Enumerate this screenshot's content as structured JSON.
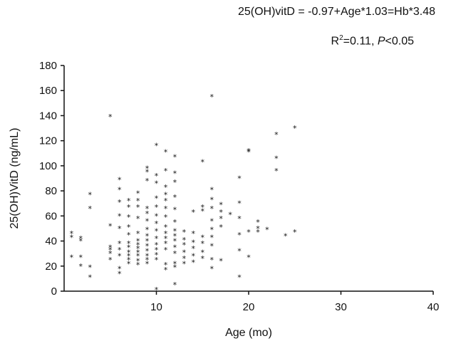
{
  "annotations": {
    "equation": "25(OH)vitD = -0.97+Age*1.03=Hb*3.48",
    "r2_prefix": "R",
    "r2_sup": "2",
    "r2_mid": "=0.11, ",
    "p_letter": "P",
    "p_rest": "<0.05"
  },
  "chart_data": {
    "type": "scatter",
    "xlabel": "Age (mo)",
    "ylabel": "25(OH)VitD (ng/mL)",
    "xlim": [
      0,
      40
    ],
    "ylim": [
      0,
      180
    ],
    "x_ticks": [
      10,
      20,
      30,
      40
    ],
    "y_ticks": [
      0,
      20,
      40,
      60,
      80,
      100,
      120,
      140,
      160,
      180
    ],
    "grid": false,
    "marker": "*",
    "points": [
      [
        0.8,
        46
      ],
      [
        0.8,
        43
      ],
      [
        0.8,
        27
      ],
      [
        1.8,
        42
      ],
      [
        1.8,
        40
      ],
      [
        1.8,
        27
      ],
      [
        1.8,
        20
      ],
      [
        2.8,
        77
      ],
      [
        2.8,
        66
      ],
      [
        2.8,
        19
      ],
      [
        2.8,
        11
      ],
      [
        5,
        139
      ],
      [
        5,
        52
      ],
      [
        5,
        35
      ],
      [
        5,
        33
      ],
      [
        5,
        30
      ],
      [
        5,
        25
      ],
      [
        6,
        89
      ],
      [
        6,
        81
      ],
      [
        6,
        71
      ],
      [
        6,
        60
      ],
      [
        6,
        50
      ],
      [
        6,
        38
      ],
      [
        6,
        33
      ],
      [
        6,
        28
      ],
      [
        6,
        18
      ],
      [
        6,
        14
      ],
      [
        7,
        72
      ],
      [
        7,
        67
      ],
      [
        7,
        59
      ],
      [
        7,
        51
      ],
      [
        7,
        45
      ],
      [
        7,
        38
      ],
      [
        7,
        35
      ],
      [
        7,
        31
      ],
      [
        7,
        28
      ],
      [
        7,
        25
      ],
      [
        7,
        22
      ],
      [
        8,
        78
      ],
      [
        8,
        72
      ],
      [
        8,
        67
      ],
      [
        8,
        58
      ],
      [
        8,
        46
      ],
      [
        8,
        40
      ],
      [
        8,
        37
      ],
      [
        8,
        34
      ],
      [
        8,
        31
      ],
      [
        8,
        28
      ],
      [
        8,
        24
      ],
      [
        8,
        21
      ],
      [
        9,
        98
      ],
      [
        9,
        95
      ],
      [
        9,
        88
      ],
      [
        9,
        66
      ],
      [
        9,
        62
      ],
      [
        9,
        56
      ],
      [
        9,
        49
      ],
      [
        9,
        44
      ],
      [
        9,
        40
      ],
      [
        9,
        36
      ],
      [
        9,
        32
      ],
      [
        9,
        28
      ],
      [
        9,
        25
      ],
      [
        9,
        22
      ],
      [
        10,
        116
      ],
      [
        10,
        92
      ],
      [
        10,
        86
      ],
      [
        10,
        74
      ],
      [
        10,
        67
      ],
      [
        10,
        60
      ],
      [
        10,
        54
      ],
      [
        10,
        48
      ],
      [
        10,
        42
      ],
      [
        10,
        37
      ],
      [
        10,
        33
      ],
      [
        10,
        29
      ],
      [
        10,
        25
      ],
      [
        10,
        1
      ],
      [
        11,
        111
      ],
      [
        11,
        96
      ],
      [
        11,
        83
      ],
      [
        11,
        77
      ],
      [
        11,
        72
      ],
      [
        11,
        66
      ],
      [
        11,
        59
      ],
      [
        11,
        51
      ],
      [
        11,
        46
      ],
      [
        11,
        42
      ],
      [
        11,
        38
      ],
      [
        11,
        33
      ],
      [
        11,
        21
      ],
      [
        11,
        17
      ],
      [
        12,
        107
      ],
      [
        12,
        94
      ],
      [
        12,
        87
      ],
      [
        12,
        75
      ],
      [
        12,
        65
      ],
      [
        12,
        55
      ],
      [
        12,
        48
      ],
      [
        12,
        44
      ],
      [
        12,
        40
      ],
      [
        12,
        35
      ],
      [
        12,
        30
      ],
      [
        12,
        22
      ],
      [
        12,
        19
      ],
      [
        12,
        5
      ],
      [
        13,
        47
      ],
      [
        13,
        41
      ],
      [
        13,
        37
      ],
      [
        13,
        31
      ],
      [
        13,
        26
      ],
      [
        13,
        22
      ],
      [
        14,
        63
      ],
      [
        14,
        46
      ],
      [
        14,
        39
      ],
      [
        14,
        34
      ],
      [
        14,
        28
      ],
      [
        14,
        23
      ],
      [
        15,
        103
      ],
      [
        15,
        67
      ],
      [
        15,
        64
      ],
      [
        15,
        43
      ],
      [
        15,
        38
      ],
      [
        15,
        31
      ],
      [
        15,
        26
      ],
      [
        16,
        155
      ],
      [
        16,
        81
      ],
      [
        16,
        73
      ],
      [
        16,
        66
      ],
      [
        16,
        56
      ],
      [
        16,
        49
      ],
      [
        16,
        43
      ],
      [
        16,
        36
      ],
      [
        16,
        25
      ],
      [
        16,
        18
      ],
      [
        17,
        69
      ],
      [
        17,
        63
      ],
      [
        17,
        58
      ],
      [
        17,
        51
      ],
      [
        17,
        24
      ],
      [
        18,
        61
      ],
      [
        19,
        90
      ],
      [
        19,
        70
      ],
      [
        19,
        58
      ],
      [
        19,
        45
      ],
      [
        19,
        32
      ],
      [
        19,
        11
      ],
      [
        20,
        112
      ],
      [
        20,
        111
      ],
      [
        20,
        47
      ],
      [
        20,
        27
      ],
      [
        21,
        55
      ],
      [
        21,
        50
      ],
      [
        21,
        47
      ],
      [
        22,
        49
      ],
      [
        23,
        125
      ],
      [
        23,
        106
      ],
      [
        23,
        96
      ],
      [
        24,
        44
      ],
      [
        25,
        130
      ],
      [
        25,
        47
      ]
    ]
  }
}
